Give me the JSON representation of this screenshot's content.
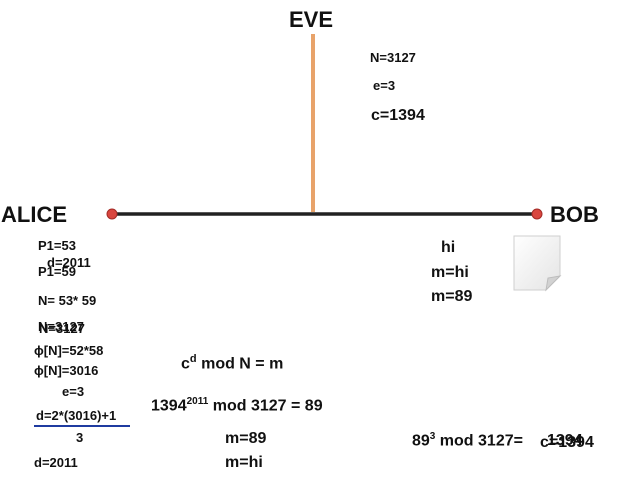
{
  "colors": {
    "line": "#222222",
    "eve_line": "#e8a36a",
    "dot": "#d9463f",
    "underline": "#1f3ba0"
  },
  "eve": {
    "title": "EVE",
    "n": "N=3127",
    "e": "e=3",
    "c": "c=1394"
  },
  "alice": {
    "title": "ALICE",
    "p1a": "P1=53",
    "d_overlap": "d=2011",
    "p1b": "P1=59",
    "n_product": "N= 53* 59",
    "n_overlap_a": "N=3127",
    "n_overlap_b": "N=3127",
    "phi_expr": "ϕ[N]=52*58",
    "phi_value": "ϕ[N]=3016",
    "e": "e=3",
    "d_numerator": "d=2*(3016)+1",
    "d_denominator": "3",
    "d_final": "d=2011"
  },
  "bob": {
    "title": "BOB",
    "msg": "hi",
    "m_text": "m=hi",
    "m_num": "m=89",
    "enc_base": "89",
    "enc_exp": "3",
    "enc_rest": " mod 3127=",
    "enc_result_a": "1394",
    "enc_result_b": "c=1394",
    "note_icon": "note-icon"
  },
  "decrypt": {
    "formula_base": "c",
    "formula_exp": "d",
    "formula_rest": " mod N = m",
    "calc_base": "1394",
    "calc_exp": "2011",
    "calc_rest": " mod 3127 = 89",
    "m_num": "m=89",
    "m_text": "m=hi"
  }
}
